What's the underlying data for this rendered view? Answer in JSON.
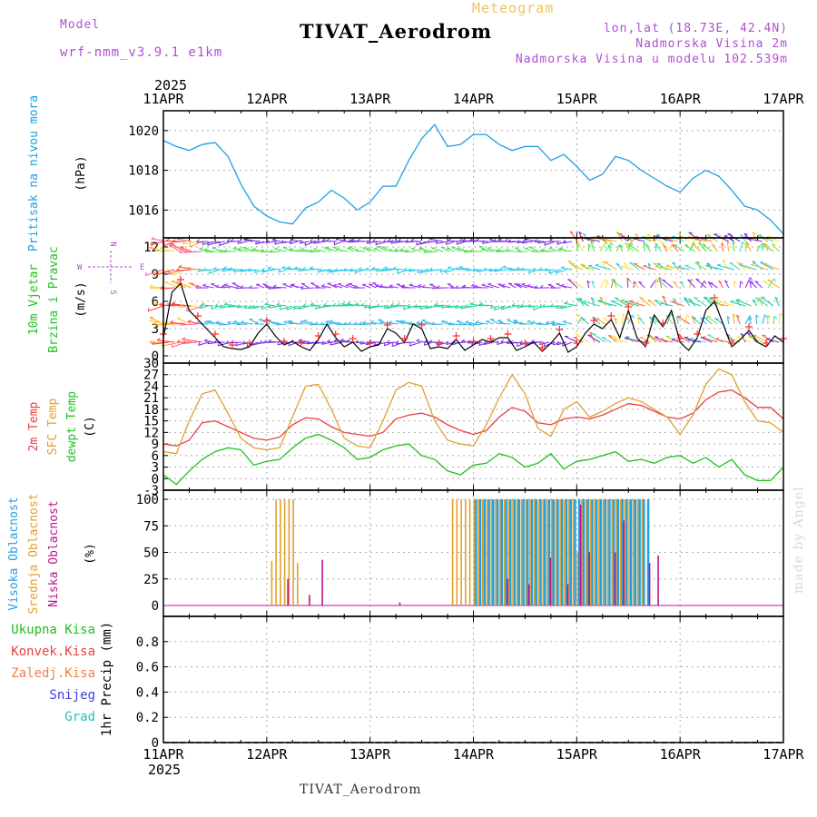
{
  "header": {
    "title": "TIVAT_Aerodrom",
    "meteogram_label": "Meteogram",
    "model_label": "Model",
    "model_name": "wrf-nmm_v3.9.1 e1km",
    "lonlat": "lon,lat (18.73E, 42.4N)",
    "elevation": "Nadmorska Visina 2m",
    "model_elevation": "Nadmorska Visina u modelu 102.539m",
    "footer_name": "TIVAT_Aerodrom",
    "watermark": "made by Angel"
  },
  "colors": {
    "pressure": "#1e9fe6",
    "temp2m": "#e84040",
    "sfc_temp": "#e0a030",
    "dewpoint": "#20c020",
    "cloud_high": "#20a0e0",
    "cloud_mid": "#e0a030",
    "cloud_low": "#c01090",
    "wind_speed": "#000000",
    "wind_marker": "#ff3030",
    "grid": "#aaaaaa",
    "purple": "#b050d0"
  },
  "time_axis": {
    "year": "2025",
    "ticks": [
      "11APR",
      "12APR",
      "13APR",
      "14APR",
      "15APR",
      "16APR",
      "17APR"
    ]
  },
  "panels": {
    "pressure": {
      "label": "Pritisak na nivou mora",
      "unit": "(hPa)"
    },
    "wind": {
      "label1": "10m Vjetar",
      "label2": "Brzina i Pravac",
      "unit": "(m/s)",
      "compass": [
        "N",
        "E",
        "S",
        "W"
      ]
    },
    "temp": {
      "label1": "2m Temp",
      "label2": "SFC Temp",
      "label3": "dewpt Temp",
      "unit": "(C)"
    },
    "cloud": {
      "label1": "Visoka Oblacnost",
      "label2": "Srednja Oblacnost",
      "label3": "Niska Oblacnost",
      "unit": "(%)"
    },
    "precip": {
      "legend": [
        "Ukupna Kisa",
        "Konvek.Kisa",
        "Zaledj.Kisa",
        "Snijeg",
        "Grad"
      ],
      "unit": "1hr Precip (mm)"
    }
  },
  "chart_data": [
    {
      "type": "line",
      "name": "pressure",
      "ylim": [
        1014.6,
        1021.0
      ],
      "yticks": [
        1016,
        1018,
        1020
      ],
      "series": [
        {
          "name": "Pritisak na nivou mora",
          "x": [
            0,
            3,
            6,
            9,
            12,
            15,
            18,
            21,
            24,
            27,
            30,
            33,
            36,
            39,
            42,
            45,
            48,
            51,
            54,
            57,
            60,
            63,
            66,
            69,
            72,
            75,
            78,
            81,
            84,
            87,
            90,
            93,
            96,
            99,
            102,
            105,
            108,
            111,
            114,
            117,
            120,
            123,
            126,
            129,
            132,
            135,
            138,
            141,
            144
          ],
          "values": [
            1019.5,
            1019.2,
            1019.0,
            1019.3,
            1019.4,
            1018.7,
            1017.3,
            1016.2,
            1015.7,
            1015.4,
            1015.3,
            1016.1,
            1016.4,
            1017.0,
            1016.6,
            1016.0,
            1016.4,
            1017.2,
            1017.2,
            1018.5,
            1019.6,
            1020.3,
            1019.2,
            1019.3,
            1019.8,
            1019.8,
            1019.3,
            1019.0,
            1019.2,
            1019.2,
            1018.5,
            1018.8,
            1018.2,
            1017.5,
            1017.8,
            1018.7,
            1018.5,
            1018.0,
            1017.6,
            1017.2,
            1016.9,
            1017.6,
            1018.0,
            1017.7,
            1017.0,
            1016.2,
            1016.0,
            1015.5,
            1014.8
          ]
        }
      ]
    },
    {
      "type": "line",
      "name": "wind",
      "ylim": [
        0,
        13
      ],
      "yticks": [
        0,
        3,
        6,
        9,
        12
      ],
      "series": [
        {
          "name": "Brzina",
          "x": [
            0,
            2,
            4,
            6,
            8,
            10,
            12,
            14,
            16,
            18,
            20,
            22,
            24,
            26,
            28,
            30,
            32,
            34,
            36,
            38,
            40,
            42,
            44,
            46,
            48,
            50,
            52,
            54,
            56,
            58,
            60,
            62,
            64,
            66,
            68,
            70,
            72,
            74,
            76,
            78,
            80,
            82,
            84,
            86,
            88,
            90,
            92,
            94,
            96,
            98,
            100,
            102,
            104,
            106,
            108,
            110,
            112,
            114,
            116,
            118,
            120,
            122,
            124,
            126,
            128,
            130,
            132,
            134,
            136,
            138,
            140,
            142,
            144
          ],
          "values": [
            2.0,
            7.0,
            8.0,
            5.0,
            4.0,
            3.0,
            2.0,
            1.0,
            0.8,
            0.7,
            1.0,
            2.5,
            3.5,
            2.2,
            1.2,
            1.6,
            1.0,
            0.6,
            1.8,
            3.5,
            2.0,
            1.0,
            1.5,
            0.5,
            1.0,
            1.2,
            3.0,
            2.5,
            1.5,
            3.5,
            3.0,
            0.8,
            1.0,
            0.8,
            1.8,
            0.6,
            1.2,
            1.8,
            1.5,
            2.0,
            2.0,
            0.6,
            1.0,
            1.5,
            0.5,
            1.4,
            2.5,
            0.4,
            1.0,
            2.5,
            3.5,
            3.0,
            4.0,
            2.0,
            5.0,
            2.0,
            1.0,
            4.5,
            3.2,
            5.0,
            1.5,
            0.6,
            2.0,
            5.0,
            6.0,
            3.5,
            1.0,
            1.8,
            2.8,
            1.5,
            1.0,
            2.2,
            1.5
          ]
        }
      ]
    },
    {
      "type": "line",
      "name": "temperature",
      "ylim": [
        -3,
        30
      ],
      "yticks": [
        -3,
        0,
        3,
        6,
        9,
        12,
        15,
        18,
        21,
        24,
        27,
        30
      ],
      "series": [
        {
          "name": "2m Temp",
          "x": [
            0,
            3,
            6,
            9,
            12,
            15,
            18,
            21,
            24,
            27,
            30,
            33,
            36,
            39,
            42,
            45,
            48,
            51,
            54,
            57,
            60,
            63,
            66,
            69,
            72,
            75,
            78,
            81,
            84,
            87,
            90,
            93,
            96,
            99,
            102,
            105,
            108,
            111,
            114,
            117,
            120,
            123,
            126,
            129,
            132,
            135,
            138,
            141,
            144
          ],
          "values": [
            9.0,
            8.5,
            10.0,
            14.5,
            15.0,
            13.5,
            12.0,
            10.5,
            10.0,
            10.8,
            14.0,
            15.8,
            15.5,
            13.5,
            12.0,
            11.5,
            11.0,
            12.0,
            15.5,
            16.5,
            17.0,
            16.0,
            14.0,
            12.5,
            11.5,
            12.5,
            16.0,
            18.5,
            17.5,
            14.5,
            14.0,
            15.5,
            16.0,
            15.5,
            16.5,
            18.0,
            19.5,
            19.0,
            17.5,
            16.0,
            15.5,
            17.0,
            20.5,
            22.5,
            23.0,
            21.0,
            18.5,
            18.5,
            15.5
          ]
        },
        {
          "name": "SFC Temp",
          "x": [
            0,
            3,
            6,
            9,
            12,
            15,
            18,
            21,
            24,
            27,
            30,
            33,
            36,
            39,
            42,
            45,
            48,
            51,
            54,
            57,
            60,
            63,
            66,
            69,
            72,
            75,
            78,
            81,
            84,
            87,
            90,
            93,
            96,
            99,
            102,
            105,
            108,
            111,
            114,
            117,
            120,
            123,
            126,
            129,
            132,
            135,
            138,
            141,
            144
          ],
          "values": [
            7.0,
            6.5,
            15.0,
            22.0,
            23.0,
            17.0,
            10.5,
            8.0,
            7.5,
            8.0,
            16.0,
            24.0,
            24.5,
            18.0,
            10.5,
            8.5,
            8.0,
            15.0,
            23.0,
            25.0,
            24.0,
            15.0,
            10.0,
            9.0,
            8.5,
            14.0,
            21.0,
            27.0,
            22.0,
            13.0,
            11.0,
            18.0,
            20.0,
            16.0,
            17.5,
            19.5,
            21.0,
            20.0,
            18.0,
            16.0,
            11.5,
            16.5,
            24.5,
            28.5,
            27.0,
            20.0,
            15.0,
            14.5,
            12.0
          ]
        },
        {
          "name": "dewpt Temp",
          "x": [
            0,
            3,
            6,
            9,
            12,
            15,
            18,
            21,
            24,
            27,
            30,
            33,
            36,
            39,
            42,
            45,
            48,
            51,
            54,
            57,
            60,
            63,
            66,
            69,
            72,
            75,
            78,
            81,
            84,
            87,
            90,
            93,
            96,
            99,
            102,
            105,
            108,
            111,
            114,
            117,
            120,
            123,
            126,
            129,
            132,
            135,
            138,
            141,
            144
          ],
          "values": [
            1.0,
            -1.5,
            2.0,
            5.0,
            7.0,
            8.0,
            7.5,
            3.5,
            4.5,
            5.0,
            8.0,
            10.5,
            11.5,
            10.0,
            8.0,
            5.0,
            5.5,
            7.5,
            8.5,
            9.0,
            6.0,
            5.0,
            2.0,
            1.0,
            3.5,
            4.0,
            6.5,
            5.5,
            3.0,
            4.0,
            6.5,
            2.5,
            4.5,
            5.0,
            6.0,
            7.0,
            4.5,
            5.0,
            4.0,
            5.5,
            6.0,
            4.0,
            5.5,
            3.0,
            5.0,
            1.0,
            -0.5,
            -0.5,
            3.0
          ]
        }
      ]
    },
    {
      "type": "bar",
      "name": "cloud",
      "ylim": [
        0,
        100
      ],
      "yticks": [
        0,
        25,
        50,
        75,
        100
      ],
      "series": [
        {
          "name": "Visoka Oblacnost",
          "x": [
            72,
            73,
            74,
            75,
            76,
            77,
            78,
            79,
            80,
            81,
            82,
            83,
            84,
            85,
            86,
            87,
            88,
            89,
            90,
            91,
            92,
            93,
            94,
            95,
            96,
            97,
            98,
            99,
            100,
            101,
            102,
            103,
            104,
            105,
            106,
            107,
            108,
            109,
            110,
            111,
            112
          ],
          "values": [
            100,
            100,
            100,
            100,
            100,
            100,
            100,
            100,
            100,
            100,
            100,
            100,
            100,
            100,
            100,
            100,
            100,
            100,
            100,
            100,
            100,
            100,
            100,
            100,
            100,
            100,
            100,
            100,
            100,
            100,
            100,
            100,
            100,
            100,
            100,
            100,
            100,
            100,
            100,
            100,
            100
          ]
        },
        {
          "name": "Srednja Oblacnost",
          "x": [
            25,
            26,
            27,
            28,
            29,
            30,
            31,
            67,
            68,
            69,
            70,
            71,
            72,
            73,
            74,
            75,
            76,
            77,
            78,
            79,
            80,
            81,
            82,
            83,
            84,
            85,
            86,
            87,
            88,
            89,
            90,
            91,
            92,
            93,
            94,
            95,
            96,
            97,
            98,
            99,
            100,
            101,
            102,
            103,
            104,
            105,
            106,
            107,
            108,
            109,
            110,
            111
          ],
          "values": [
            42,
            100,
            100,
            100,
            100,
            100,
            40,
            100,
            100,
            100,
            100,
            100,
            100,
            100,
            100,
            100,
            100,
            100,
            100,
            100,
            100,
            100,
            100,
            100,
            100,
            100,
            100,
            100,
            100,
            100,
            100,
            100,
            100,
            100,
            100,
            100,
            50,
            100,
            100,
            100,
            100,
            100,
            100,
            100,
            100,
            100,
            100,
            100,
            100,
            100,
            100,
            100
          ]
        },
        {
          "name": "Niska Oblacnost",
          "x": [
            29,
            34,
            37,
            55,
            80,
            85,
            90,
            94,
            97,
            99,
            105,
            107,
            113,
            115
          ],
          "values": [
            25,
            10,
            43,
            3,
            25,
            20,
            45,
            20,
            95,
            50,
            50,
            80,
            40,
            47
          ]
        }
      ]
    },
    {
      "type": "bar",
      "name": "precip",
      "ylim": [
        0,
        1.0
      ],
      "yticks": [
        0,
        0.2,
        0.4,
        0.6,
        0.8
      ],
      "series": [
        {
          "name": "Ukupna Kisa",
          "values": []
        }
      ]
    }
  ]
}
